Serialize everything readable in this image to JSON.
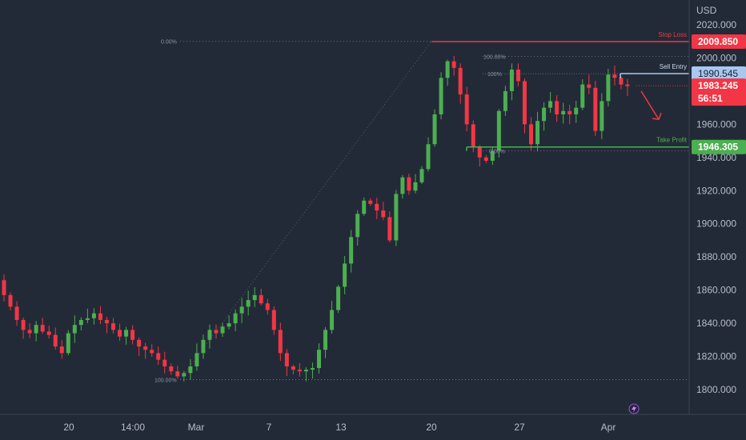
{
  "chart_data": {
    "type": "candlestick",
    "currency": "USD",
    "y_ticks": [
      "2020.000",
      "2000.000",
      "1980.000",
      "1960.000",
      "1940.000",
      "1920.000",
      "1900.000",
      "1880.000",
      "1860.000",
      "1840.000",
      "1820.000",
      "1800.000"
    ],
    "x_ticks": [
      "20",
      "14:00",
      "Mar",
      "7",
      "13",
      "20",
      "27",
      "Apr"
    ],
    "ylim": [
      1788,
      2024
    ],
    "levels": {
      "stop_loss": {
        "label": "Stop Loss",
        "value": 2009.85,
        "tag": "2009.850",
        "color": "#f23645"
      },
      "sell_entry": {
        "label": "Sell Entry",
        "value": 1990.545,
        "tag": "1990.545",
        "color": "#a8c8f0"
      },
      "take_profit": {
        "label": "Take Profit",
        "value": 1946.305,
        "tag": "1946.305",
        "color": "#4caf50"
      },
      "current": {
        "value": 1983.245,
        "tag": "1983.245",
        "countdown": "56:51",
        "color": "#f23645"
      }
    },
    "fib_labels": {
      "top_zero": "0.00%",
      "bottom_hundred": "100.00%",
      "range_hundred": "100.00%",
      "range_zero": "0.00%",
      "range_mid": "100%"
    },
    "price_path": [
      1866,
      1857,
      1850,
      1842,
      1836,
      1834,
      1839,
      1835,
      1833,
      1826,
      1822,
      1834,
      1839,
      1842,
      1843,
      1846,
      1842,
      1840,
      1836,
      1832,
      1836,
      1830,
      1826,
      1824,
      1822,
      1818,
      1814,
      1811,
      1808,
      1810,
      1814,
      1822,
      1830,
      1836,
      1834,
      1838,
      1840,
      1846,
      1850,
      1854,
      1857,
      1852,
      1848,
      1836,
      1822,
      1814,
      1812,
      1811,
      1812,
      1813,
      1824,
      1836,
      1848,
      1862,
      1876,
      1892,
      1906,
      1914,
      1912,
      1908,
      1904,
      1890,
      1918,
      1928,
      1920,
      1925,
      1933,
      1948,
      1966,
      1988,
      1998,
      1994,
      1978,
      1960,
      1946,
      1940,
      1938,
      1944,
      1968,
      1980,
      1993,
      1986,
      1960,
      1948,
      1962,
      1970,
      1974,
      1966,
      1968,
      1966,
      1970,
      1984,
      1982,
      1956,
      1974,
      1990,
      1988,
      1984,
      1983
    ],
    "arrow": {
      "from": 1980,
      "to": 1963
    }
  }
}
